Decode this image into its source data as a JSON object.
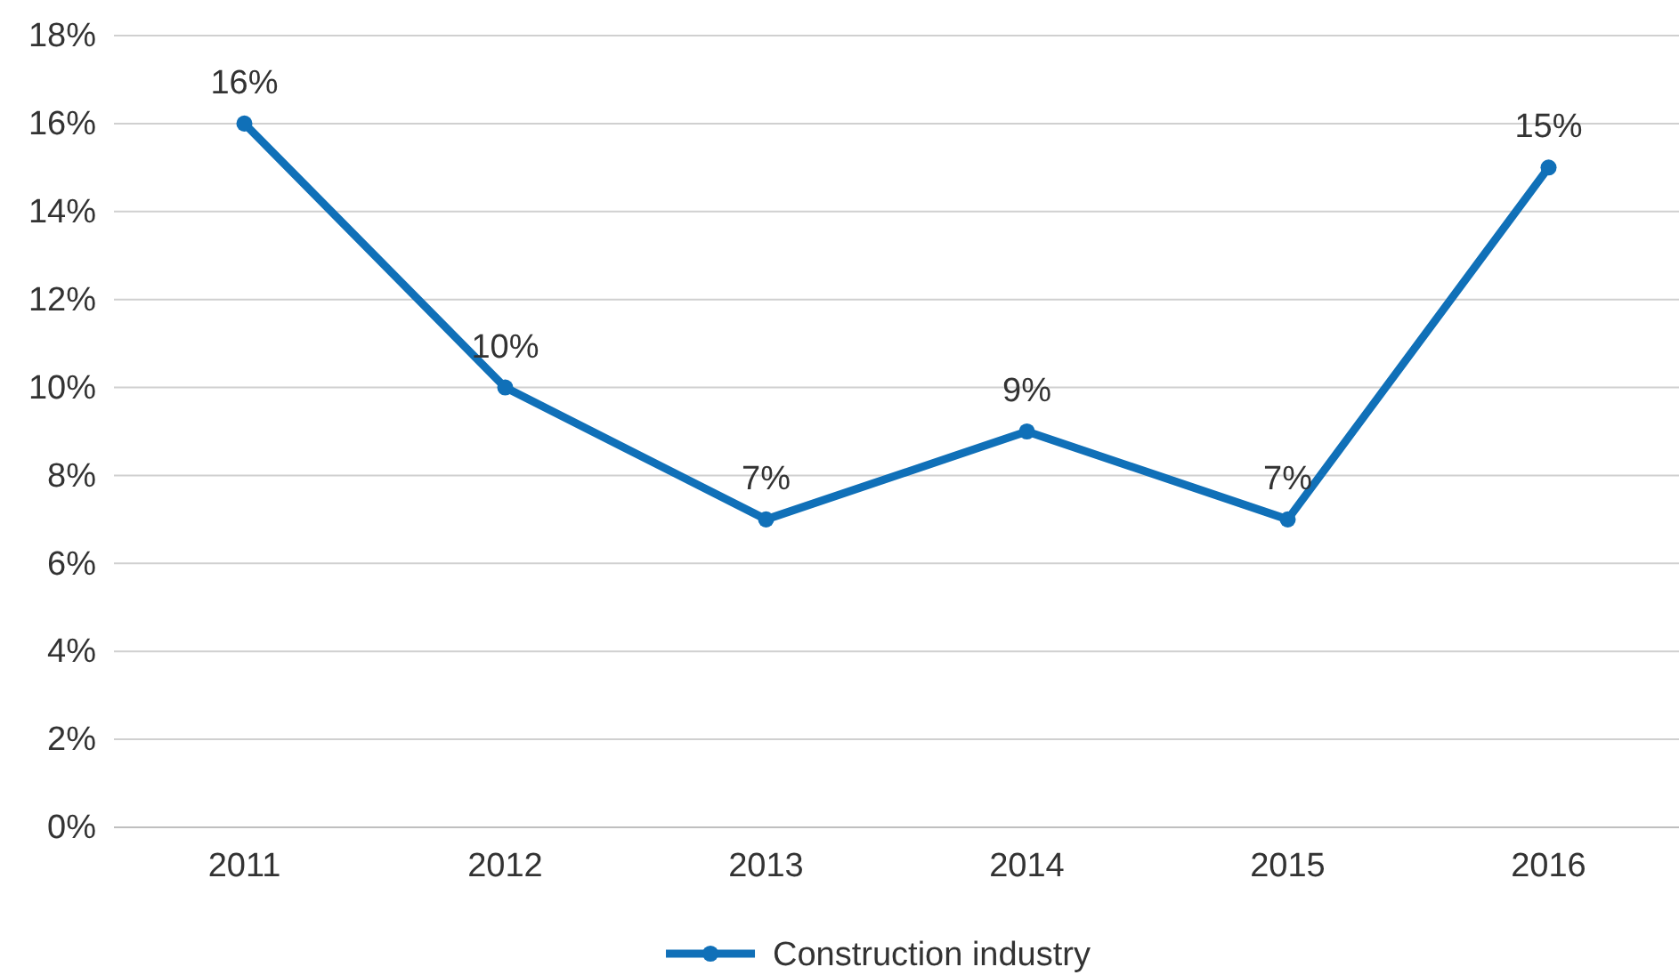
{
  "chart_data": {
    "type": "line",
    "categories": [
      "2011",
      "2012",
      "2013",
      "2014",
      "2015",
      "2016"
    ],
    "series": [
      {
        "name": "Construction industry",
        "color": "#1070b8",
        "values": [
          16,
          10,
          7,
          9,
          7,
          15
        ],
        "value_labels": [
          "16%",
          "10%",
          "7%",
          "9%",
          "7%",
          "15%"
        ]
      }
    ],
    "ylim": [
      0,
      18
    ],
    "yticks": [
      {
        "value": 0,
        "label": "0%"
      },
      {
        "value": 2,
        "label": "2%"
      },
      {
        "value": 4,
        "label": "4%"
      },
      {
        "value": 6,
        "label": "6%"
      },
      {
        "value": 8,
        "label": "8%"
      },
      {
        "value": 10,
        "label": "10%"
      },
      {
        "value": 12,
        "label": "12%"
      },
      {
        "value": 14,
        "label": "14%"
      },
      {
        "value": 16,
        "label": "16%"
      },
      {
        "value": 18,
        "label": "18%"
      }
    ],
    "grid": "y",
    "legend": "bottom",
    "marker": "circle",
    "line_style": "solid"
  }
}
